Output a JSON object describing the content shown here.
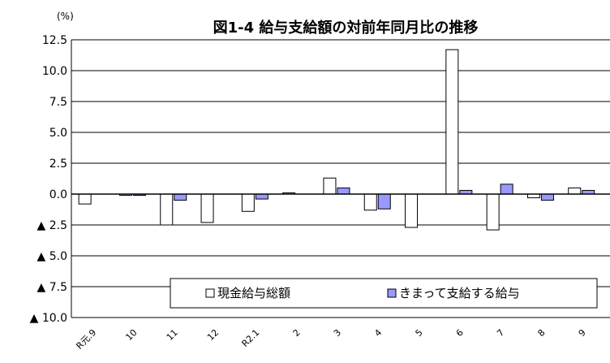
{
  "chart_data": {
    "type": "bar",
    "title": "図1-4 給与支給額の対前年同月比の推移",
    "unit_label": "(%)",
    "categories": [
      "R元.9",
      "10",
      "11",
      "12",
      "R2.1",
      "2",
      "3",
      "4",
      "5",
      "6",
      "7",
      "8",
      "9"
    ],
    "series": [
      {
        "name": "現金給与総額",
        "color": "#ffffff",
        "values": [
          -0.8,
          -0.1,
          -2.5,
          -2.3,
          -1.4,
          0.1,
          1.3,
          -1.3,
          -2.7,
          11.7,
          -2.9,
          -0.3,
          0.5
        ]
      },
      {
        "name": "きまって支給する給与",
        "color": "#9999ff",
        "values": [
          0.0,
          -0.1,
          -0.5,
          0.0,
          -0.4,
          0.0,
          0.5,
          -1.2,
          0.0,
          0.3,
          0.8,
          -0.5,
          0.3
        ]
      }
    ],
    "ylim": [
      -10,
      12.5
    ],
    "y_ticks": [
      {
        "value": 12.5,
        "label": "12.5"
      },
      {
        "value": 10,
        "label": "10.0"
      },
      {
        "value": 7.5,
        "label": "7.5"
      },
      {
        "value": 5,
        "label": "5.0"
      },
      {
        "value": 2.5,
        "label": "2.5"
      },
      {
        "value": 0,
        "label": "0.0"
      },
      {
        "value": -2.5,
        "label": "▲ 2.5"
      },
      {
        "value": -5,
        "label": "▲ 5.0"
      },
      {
        "value": -7.5,
        "label": "▲ 7.5"
      },
      {
        "value": -10,
        "label": "▲ 10.0"
      }
    ],
    "grid": true,
    "legend_position": "bottom-right"
  }
}
